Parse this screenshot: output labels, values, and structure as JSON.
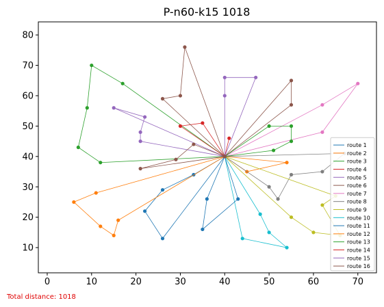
{
  "chart_data": {
    "type": "line",
    "title": "P-n60-k15 1018",
    "xlabel": "",
    "ylabel": "",
    "xlim": [
      -2,
      74.2
    ],
    "ylim": [
      1.7,
      84.3
    ],
    "xticks": [
      0,
      10,
      20,
      30,
      40,
      50,
      60,
      70
    ],
    "yticks": [
      10,
      20,
      30,
      40,
      50,
      60,
      70,
      80
    ],
    "grid": false,
    "legend_position": "lower-right",
    "depot": [
      40,
      40
    ],
    "series": [
      {
        "name": "route 1",
        "color": "#1f77b4",
        "points": [
          [
            40,
            40
          ],
          [
            33,
            34
          ],
          [
            26,
            29
          ],
          [
            22,
            22
          ],
          [
            26,
            13
          ],
          [
            40,
            40
          ]
        ]
      },
      {
        "name": "route 2",
        "color": "#ff7f0e",
        "points": [
          [
            40,
            40
          ],
          [
            54,
            38
          ],
          [
            45,
            35
          ],
          [
            40,
            40
          ]
        ]
      },
      {
        "name": "route 3",
        "color": "#2ca02c",
        "points": [
          [
            40,
            40
          ],
          [
            12,
            38
          ],
          [
            7,
            43
          ],
          [
            9,
            56
          ],
          [
            10,
            70
          ],
          [
            17,
            64
          ],
          [
            40,
            40
          ]
        ]
      },
      {
        "name": "route 4",
        "color": "#d62728",
        "points": [
          [
            40,
            40
          ],
          [
            35,
            51
          ],
          [
            30,
            50
          ],
          [
            40,
            40
          ]
        ]
      },
      {
        "name": "route 5",
        "color": "#9467bd",
        "points": [
          [
            40,
            40
          ],
          [
            21,
            45
          ],
          [
            21,
            48
          ],
          [
            22,
            53
          ],
          [
            15,
            56
          ],
          [
            40,
            40
          ]
        ]
      },
      {
        "name": "route 6",
        "color": "#8c564b",
        "points": [
          [
            40,
            40
          ],
          [
            55,
            57
          ],
          [
            55,
            65
          ],
          [
            40,
            40
          ]
        ]
      },
      {
        "name": "route 7",
        "color": "#e377c2",
        "points": [
          [
            40,
            40
          ],
          [
            62,
            48
          ],
          [
            70,
            64
          ],
          [
            62,
            57
          ],
          [
            40,
            40
          ]
        ]
      },
      {
        "name": "route 8",
        "color": "#7f7f7f",
        "points": [
          [
            40,
            40
          ],
          [
            67,
            41
          ],
          [
            62,
            35
          ],
          [
            55,
            34
          ],
          [
            52,
            26
          ],
          [
            50,
            30
          ],
          [
            40,
            40
          ]
        ]
      },
      {
        "name": "route 9",
        "color": "#bcbd22",
        "points": [
          [
            40,
            40
          ],
          [
            55,
            20
          ],
          [
            60,
            15
          ],
          [
            66,
            14
          ],
          [
            62,
            24
          ],
          [
            65,
            27
          ],
          [
            40,
            40
          ]
        ]
      },
      {
        "name": "route 10",
        "color": "#17becf",
        "points": [
          [
            40,
            40
          ],
          [
            48,
            21
          ],
          [
            50,
            15
          ],
          [
            54,
            10
          ],
          [
            44,
            13
          ],
          [
            40,
            40
          ]
        ]
      },
      {
        "name": "route 11",
        "color": "#1f77b4",
        "points": [
          [
            40,
            40
          ],
          [
            43,
            26
          ],
          [
            35,
            16
          ],
          [
            36,
            26
          ],
          [
            40,
            40
          ]
        ]
      },
      {
        "name": "route 12",
        "color": "#ff7f0e",
        "points": [
          [
            40,
            40
          ],
          [
            11,
            28
          ],
          [
            6,
            25
          ],
          [
            12,
            17
          ],
          [
            15,
            14
          ],
          [
            16,
            19
          ],
          [
            40,
            40
          ]
        ]
      },
      {
        "name": "route 13",
        "color": "#2ca02c",
        "points": [
          [
            40,
            40
          ],
          [
            50,
            50
          ],
          [
            55,
            50
          ],
          [
            55,
            45
          ],
          [
            51,
            42
          ],
          [
            40,
            40
          ]
        ]
      },
      {
        "name": "route 14",
        "color": "#d62728",
        "points": [
          [
            40,
            40
          ],
          [
            41,
            46
          ],
          [
            40,
            40
          ]
        ]
      },
      {
        "name": "route 15",
        "color": "#9467bd",
        "points": [
          [
            40,
            40
          ],
          [
            40,
            60
          ],
          [
            40,
            66
          ],
          [
            47,
            66
          ],
          [
            40,
            40
          ]
        ]
      },
      {
        "name": "route 16",
        "color": "#8c564b",
        "points": [
          [
            40,
            40
          ],
          [
            31,
            76
          ],
          [
            30,
            60
          ],
          [
            26,
            59
          ],
          [
            40,
            40
          ],
          [
            33,
            44
          ],
          [
            29,
            39
          ],
          [
            21,
            36
          ],
          [
            40,
            40
          ]
        ]
      }
    ]
  },
  "footer": {
    "total_distance_label": "Total distance: 1018"
  }
}
